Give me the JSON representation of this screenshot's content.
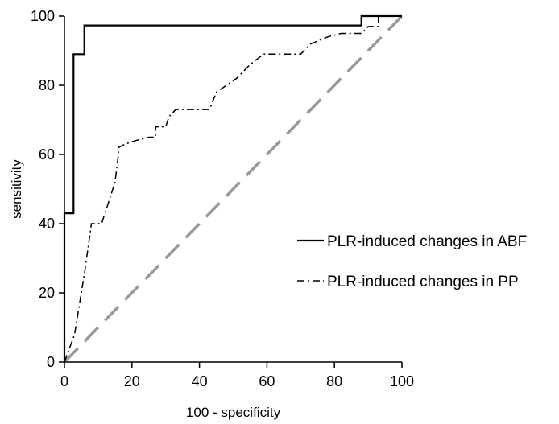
{
  "chart_data": {
    "type": "line",
    "title": "",
    "xlabel": "100 - specificity",
    "ylabel": "sensitivity",
    "xlim": [
      0,
      100
    ],
    "ylim": [
      0,
      100
    ],
    "xticks": [
      0,
      20,
      40,
      60,
      80,
      100
    ],
    "yticks": [
      0,
      20,
      40,
      60,
      80,
      100
    ],
    "xtick_labels": [
      "0",
      "20",
      "40",
      "60",
      "80",
      "100"
    ],
    "ytick_labels": [
      "0",
      "20",
      "40",
      "60",
      "80",
      "100"
    ],
    "grid": false,
    "legend_position": "right",
    "series": [
      {
        "name": "PLR-induced changes in ABF",
        "style": "solid",
        "color": "#000000",
        "x": [
          0,
          0,
          2.7,
          2.7,
          5.9,
          5.9,
          88,
          88,
          91,
          91,
          94,
          94,
          100
        ],
        "y": [
          0,
          43,
          43,
          89,
          89,
          97.3,
          97.3,
          100,
          100,
          100,
          100,
          100,
          100
        ]
      },
      {
        "name": "PLR-induced changes in PP",
        "style": "dash-dot",
        "color": "#000000",
        "x": [
          0,
          3,
          6,
          8,
          11,
          13,
          15,
          16,
          16,
          18,
          21,
          25,
          27,
          27,
          30,
          31,
          33,
          43,
          45,
          51,
          55,
          59,
          64,
          70,
          73,
          78,
          82,
          86,
          88,
          90,
          93,
          93,
          96,
          100
        ],
        "y": [
          0,
          8,
          26,
          40,
          40,
          46,
          52,
          60,
          62,
          63,
          64,
          65,
          65,
          68,
          68,
          71,
          73,
          73,
          78,
          82,
          86,
          89,
          89,
          89,
          92,
          94,
          95,
          95,
          95,
          97,
          97,
          100,
          100,
          100
        ]
      },
      {
        "name": "",
        "style": "dashed",
        "color": "#999999",
        "x": [
          0,
          100
        ],
        "y": [
          0,
          100
        ]
      }
    ]
  }
}
